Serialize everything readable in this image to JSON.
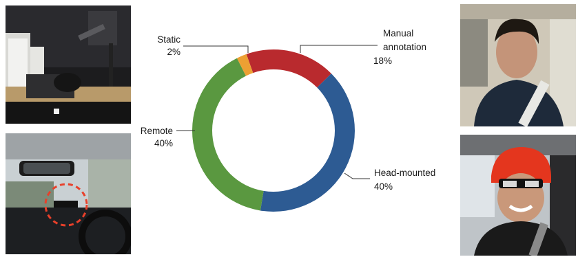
{
  "chart_data": {
    "type": "pie",
    "subtype": "donut",
    "title": "",
    "slices": [
      {
        "label": "Manual annotation",
        "label_lines": [
          "Manual",
          "annotation"
        ],
        "value": 18,
        "value_label": "18%",
        "color": "#b92a2e"
      },
      {
        "label": "Head-mounted",
        "label_lines": [
          "Head-mounted"
        ],
        "value": 40,
        "value_label": "40%",
        "color": "#2d5b93"
      },
      {
        "label": "Remote",
        "label_lines": [
          "Remote"
        ],
        "value": 40,
        "value_label": "40%",
        "color": "#5a9840"
      },
      {
        "label": "Static",
        "label_lines": [
          "Static"
        ],
        "value": 2,
        "value_label": "2%",
        "color": "#eda033"
      }
    ]
  },
  "photos": {
    "top_left": "lab-driving-simulator-photo",
    "bottom_left": "in-car-remote-eye-tracker-photo",
    "top_right": "male-driver-photo",
    "bottom_right": "female-driver-head-mounted-tracker-photo"
  },
  "colors": {
    "highlight_circle": "#e8402a"
  }
}
